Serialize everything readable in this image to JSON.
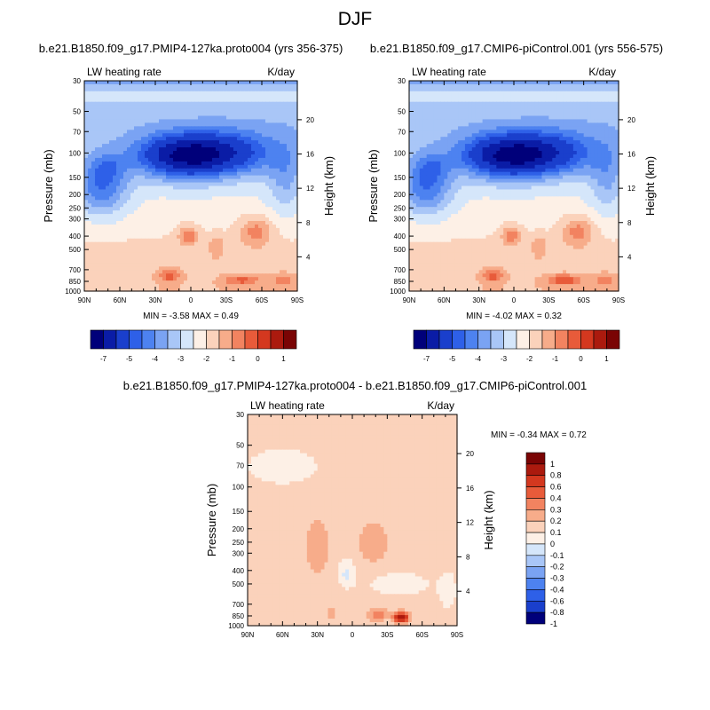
{
  "page": {
    "title": "DJF"
  },
  "colors": {
    "scale": [
      "#00007a",
      "#0a1ca6",
      "#1a3fcc",
      "#2e60e8",
      "#4d82f0",
      "#7aa3f3",
      "#a9c6f7",
      "#d5e6fa",
      "#fdf0e6",
      "#fbd2bb",
      "#f7ac8a",
      "#f28360",
      "#e85b3a",
      "#d4381f",
      "#ab1a0e",
      "#7a0404"
    ],
    "diff_scale": [
      "#00007a",
      "#1a3fcc",
      "#2e60e8",
      "#4d82f0",
      "#7aa3f3",
      "#a9c6f7",
      "#d5e6fa",
      "#fdf0e6",
      "#fbd2bb",
      "#f7ac8a",
      "#f28360",
      "#e85b3a",
      "#d4381f",
      "#ab1a0e",
      "#7a0404"
    ]
  },
  "chart_data": [
    {
      "type": "heatmap",
      "title": "b.e21.B1850.f09_g17.PMIP4-127ka.proto004 (yrs 356-375)",
      "left_label": "LW heating rate",
      "right_label": "K/day",
      "ylabel": "Pressure (mb)",
      "y2label": "Height (km)",
      "x_ticks": [
        "90N",
        "60N",
        "30N",
        "0",
        "30S",
        "60S",
        "90S"
      ],
      "y_ticks": [
        "30",
        "50",
        "70",
        "100",
        "150",
        "200",
        "250",
        "300",
        "400",
        "500",
        "700",
        "850",
        "1000"
      ],
      "y2_ticks": [
        "20",
        "16",
        "12",
        "8",
        "4"
      ],
      "y_scale": "log",
      "min_max": {
        "min_label": "MIN =",
        "min": "-3.58",
        "max_label": "MAX =",
        "max": "0.49"
      },
      "colorbar_labels": [
        "-7",
        "-5",
        "-4",
        "-3",
        "-2",
        "-1",
        "0",
        "1"
      ],
      "field": {
        "base": [
          {
            "v": -1.7,
            "lat": -20,
            "lp": 2.72,
            "w": 180,
            "h": 0.7
          }
        ],
        "blobs": [
          {
            "lat": 5,
            "lp": 2.04,
            "wl": 38,
            "wp": 0.16,
            "a": -2.4
          },
          {
            "lat": -35,
            "lp": 2.0,
            "wl": 42,
            "wp": 0.16,
            "a": -1.9
          },
          {
            "lat": 70,
            "lp": 2.25,
            "wl": 22,
            "wp": 0.22,
            "a": -1.1
          },
          {
            "lat": -80,
            "lp": 2.2,
            "wl": 15,
            "wp": 0.25,
            "a": -1.0
          },
          {
            "lat": 70,
            "lp": 2.1,
            "wl": 15,
            "wp": 0.1,
            "a": -0.7
          },
          {
            "lat": 2,
            "lp": 2.6,
            "wl": 9,
            "wp": 0.07,
            "a": 1.4
          },
          {
            "lat": 18,
            "lp": 2.89,
            "wl": 9,
            "wp": 0.05,
            "a": 1.4
          },
          {
            "lat": -43,
            "lp": 2.92,
            "wl": 15,
            "wp": 0.04,
            "a": 1.3
          },
          {
            "lat": -78,
            "lp": 2.92,
            "wl": 9,
            "wp": 0.045,
            "a": 1.1
          },
          {
            "lat": -55,
            "lp": 2.57,
            "wl": 14,
            "wp": 0.11,
            "a": 1.3
          },
          {
            "lat": -22,
            "lp": 2.68,
            "wl": 7,
            "wp": 0.08,
            "a": 0.9
          }
        ]
      }
    },
    {
      "type": "heatmap",
      "title": "b.e21.B1850.f09_g17.CMIP6-piControl.001 (yrs 556-575)",
      "left_label": "LW heating rate",
      "right_label": "K/day",
      "ylabel": "Pressure (mb)",
      "y2label": "Height (km)",
      "x_ticks": [
        "90N",
        "60N",
        "30N",
        "0",
        "30S",
        "60S",
        "90S"
      ],
      "y_ticks": [
        "30",
        "50",
        "70",
        "100",
        "150",
        "200",
        "250",
        "300",
        "400",
        "500",
        "700",
        "850",
        "1000"
      ],
      "y2_ticks": [
        "20",
        "16",
        "12",
        "8",
        "4"
      ],
      "y_scale": "log",
      "min_max": {
        "min_label": "MIN =",
        "min": "-4.02",
        "max_label": "MAX =",
        "max": "0.32"
      },
      "colorbar_labels": [
        "-7",
        "-5",
        "-4",
        "-3",
        "-2",
        "-1",
        "0",
        "1"
      ],
      "field": {
        "base": [
          {
            "v": -1.7,
            "lat": -20,
            "lp": 2.72,
            "w": 180,
            "h": 0.7
          }
        ],
        "blobs": [
          {
            "lat": 5,
            "lp": 2.04,
            "wl": 38,
            "wp": 0.16,
            "a": -2.4
          },
          {
            "lat": -35,
            "lp": 2.0,
            "wl": 42,
            "wp": 0.16,
            "a": -1.9
          },
          {
            "lat": 70,
            "lp": 2.25,
            "wl": 22,
            "wp": 0.22,
            "a": -1.1
          },
          {
            "lat": -80,
            "lp": 2.2,
            "wl": 15,
            "wp": 0.25,
            "a": -1.0
          },
          {
            "lat": 70,
            "lp": 2.1,
            "wl": 15,
            "wp": 0.1,
            "a": -0.7
          },
          {
            "lat": 2,
            "lp": 2.6,
            "wl": 9,
            "wp": 0.07,
            "a": 1.3
          },
          {
            "lat": 18,
            "lp": 2.89,
            "wl": 9,
            "wp": 0.05,
            "a": 1.4
          },
          {
            "lat": -43,
            "lp": 2.92,
            "wl": 15,
            "wp": 0.04,
            "a": 1.6
          },
          {
            "lat": -78,
            "lp": 2.92,
            "wl": 9,
            "wp": 0.045,
            "a": 1.1
          },
          {
            "lat": -55,
            "lp": 2.57,
            "wl": 14,
            "wp": 0.11,
            "a": 1.3
          },
          {
            "lat": -22,
            "lp": 2.68,
            "wl": 7,
            "wp": 0.08,
            "a": 0.9
          }
        ]
      }
    },
    {
      "type": "heatmap",
      "title": "b.e21.B1850.f09_g17.PMIP4-127ka.proto004 - b.e21.B1850.f09_g17.CMIP6-piControl.001",
      "left_label": "LW heating rate",
      "right_label": "K/day",
      "ylabel": "Pressure (mb)",
      "y2label": "Height (km)",
      "x_ticks": [
        "90N",
        "60N",
        "30N",
        "0",
        "30S",
        "60S",
        "90S"
      ],
      "y_ticks": [
        "30",
        "50",
        "70",
        "100",
        "150",
        "200",
        "250",
        "300",
        "400",
        "500",
        "700",
        "850",
        "1000"
      ],
      "y2_ticks": [
        "20",
        "16",
        "12",
        "8",
        "4"
      ],
      "y_scale": "log",
      "min_max": {
        "min_label": "MIN =",
        "min": "-0.34",
        "max_label": "MAX =",
        "max": "0.72"
      },
      "colorbar_labels": [
        "1",
        "0.8",
        "0.6",
        "0.4",
        "0.3",
        "0.2",
        "0.1",
        "0",
        "-0.1",
        "-0.2",
        "-0.3",
        "-0.4",
        "-0.6",
        "-0.8",
        "-1"
      ],
      "field": {
        "base": [
          {
            "v": 0.05
          }
        ],
        "blobs": [
          {
            "lat": 30,
            "lp": 2.43,
            "wl": 10,
            "wp": 0.2,
            "a": 0.12
          },
          {
            "lat": -18,
            "lp": 2.4,
            "wl": 13,
            "wp": 0.15,
            "a": 0.12
          },
          {
            "lat": 5,
            "lp": 2.62,
            "wl": 7,
            "wp": 0.1,
            "a": -0.17
          },
          {
            "lat": -40,
            "lp": 2.7,
            "wl": 30,
            "wp": 0.1,
            "a": -0.1
          },
          {
            "lat": -82,
            "lp": 2.75,
            "wl": 8,
            "wp": 0.15,
            "a": -0.1
          },
          {
            "lat": -42,
            "lp": 2.94,
            "wl": 6,
            "wp": 0.035,
            "a": 0.67
          },
          {
            "lat": -22,
            "lp": 2.92,
            "wl": 8,
            "wp": 0.04,
            "a": 0.25
          },
          {
            "lat": 18,
            "lp": 2.92,
            "wl": 4,
            "wp": 0.04,
            "a": 0.12
          },
          {
            "lat": 60,
            "lp": 1.85,
            "wl": 35,
            "wp": 0.15,
            "a": -0.1
          }
        ]
      }
    }
  ]
}
